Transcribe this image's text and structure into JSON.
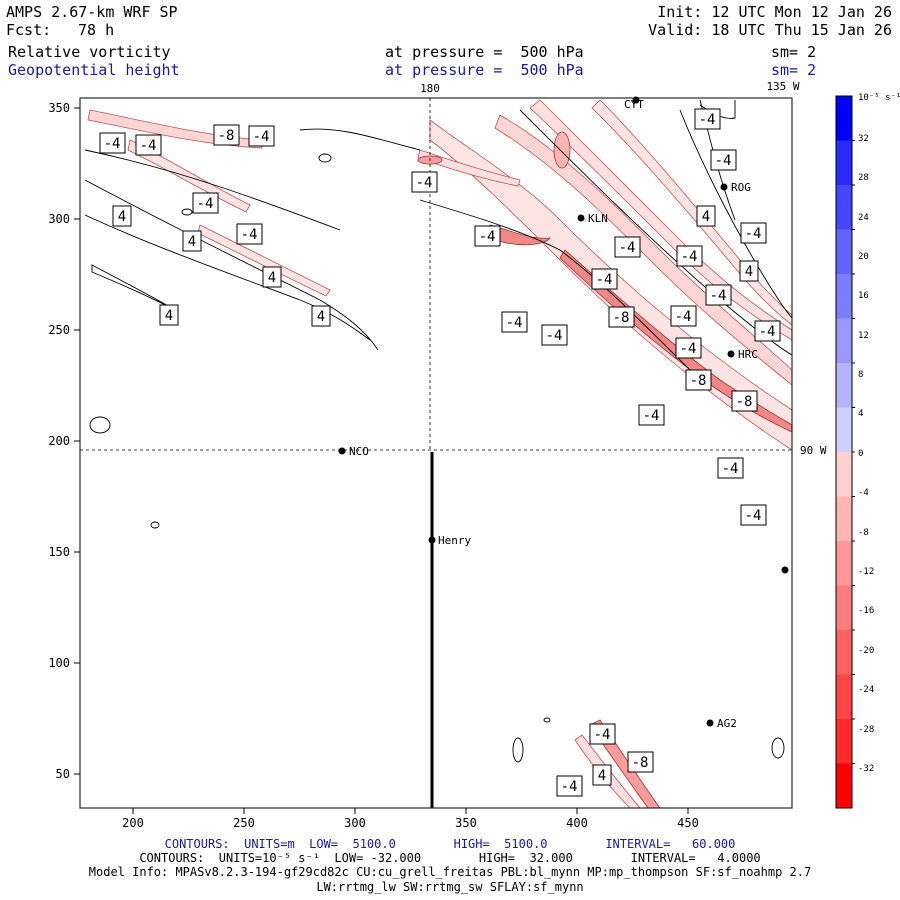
{
  "header": {
    "model": "AMPS 2.67-km WRF SP",
    "forecast_label": "Fcst:",
    "forecast_value": "78 h",
    "init": "Init: 12 UTC Mon 12 Jan 26",
    "valid": "Valid: 18 UTC Thu 15 Jan 26",
    "field1": {
      "name": "Relative vorticity",
      "level": "at pressure =  500 hPa",
      "smooth": "sm= 2"
    },
    "field2": {
      "name": "Geopotential height",
      "level": "at pressure =  500 hPa",
      "smooth": "sm= 2"
    }
  },
  "map": {
    "x_ticks": [
      "200",
      "250",
      "300",
      "350",
      "400",
      "450"
    ],
    "y_ticks": [
      "350",
      "300",
      "250",
      "200",
      "150",
      "100",
      "50"
    ],
    "lon_labels": {
      "top_180": "180",
      "top_135w": "135 W",
      "right_90w": "90 W"
    },
    "stations": [
      {
        "name": "NCO"
      },
      {
        "name": "Henry"
      },
      {
        "name": "KLN"
      },
      {
        "name": "HRC"
      },
      {
        "name": "AG2"
      },
      {
        "name": "ROG"
      },
      {
        "name": "CYT"
      }
    ],
    "contour_labels": [
      "-4",
      "-8",
      "4"
    ]
  },
  "colorbar": {
    "units": "10⁻⁵ s⁻¹",
    "ticks": [
      "32",
      "28",
      "24",
      "20",
      "16",
      "12",
      "8",
      "4",
      "0",
      "-4",
      "-8",
      "-12",
      "-16",
      "-20",
      "-24",
      "-28",
      "-32"
    ],
    "colors_pos": [
      "#0000ff",
      "#2b2bff",
      "#4646ff",
      "#6262ff",
      "#7d7dff",
      "#9999ff",
      "#b4b4ff",
      "#d0d0ff"
    ],
    "colors_neg": [
      "#ffd0d0",
      "#ffb4b4",
      "#ff9999",
      "#ff7d7d",
      "#ff6262",
      "#ff4646",
      "#ff2b2b",
      "#ff0000"
    ]
  },
  "footer": {
    "line1": "CONTOURS:  UNITS=m  LOW=  5100.0        HIGH=  5100.0        INTERVAL=   60.000",
    "line2": "CONTOURS:  UNITS=10⁻⁵ s⁻¹  LOW= -32.000        HIGH=  32.000        INTERVAL=   4.0000",
    "line3": "Model Info: MPASv8.2.3-194-gf29cd82c CU:cu_grell_freitas PBL:bl_mynn MP:mp_thompson SF:sf_noahmp 2.7",
    "line4": "LW:rrtmg_lw SW:rrtmg_sw SFLAY:sf_mynn"
  }
}
